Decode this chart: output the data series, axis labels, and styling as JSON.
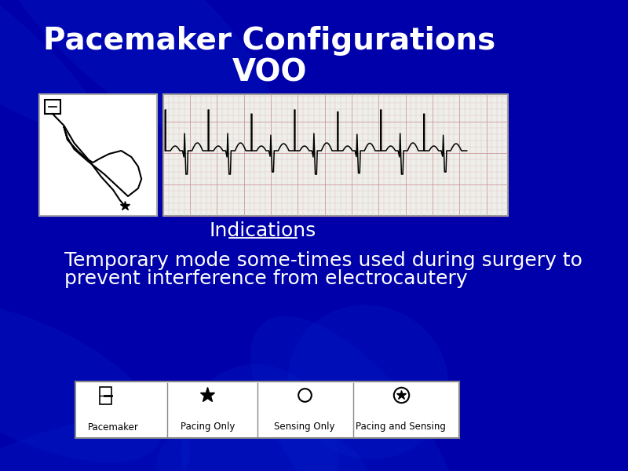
{
  "title_line1": "Pacemaker Configurations",
  "title_line2": "VOO",
  "title_color": "#FFFFFF",
  "title_fontsize": 28,
  "background_color": "#0000AA",
  "indications_label": "Indications",
  "indications_color": "#FFFFFF",
  "indications_fontsize": 18,
  "body_line1": "Temporary mode some-times used during surgery to",
  "body_line2": "prevent interference from electrocautery",
  "body_color": "#FFFFFF",
  "body_fontsize": 18,
  "legend_bg": "#FFFFFF",
  "legend_border": "#888888",
  "legend_labels": [
    "Pacemaker",
    "Pacing Only",
    "Sensing Only",
    "Pacing and Sensing"
  ]
}
